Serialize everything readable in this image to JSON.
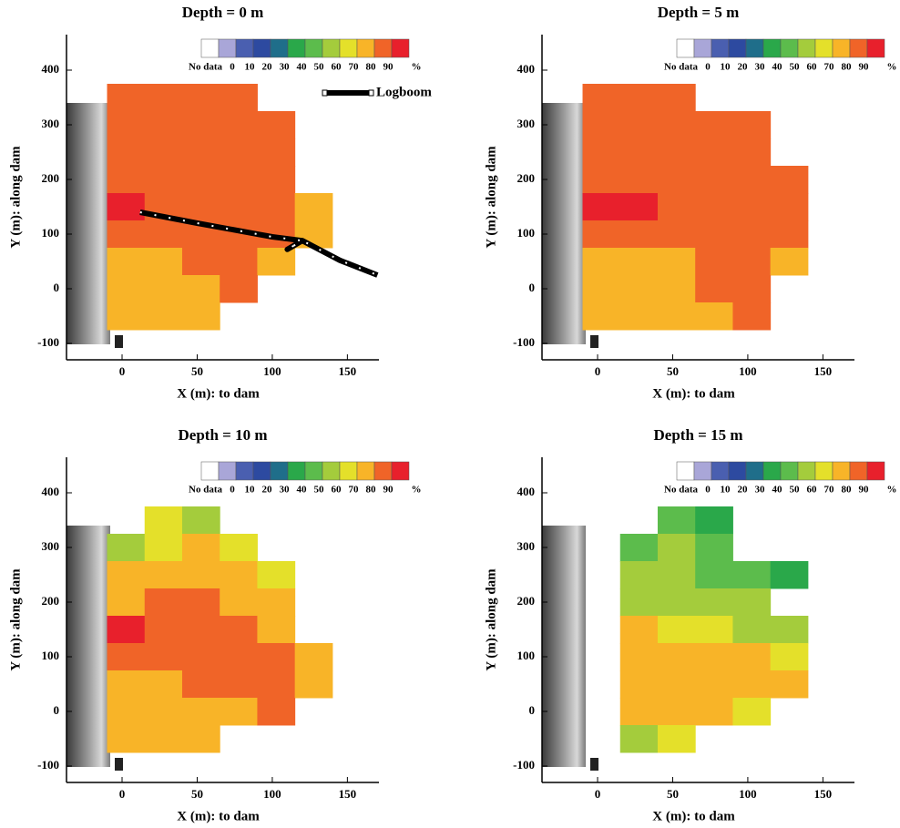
{
  "chart_data": [
    {
      "type": "heatmap",
      "title": "Depth = 0 m",
      "xlabel": "X (m): to dam",
      "ylabel": "Y (m): along dam",
      "xlim": [
        -37,
        171
      ],
      "ylim": [
        -130,
        465
      ],
      "xticks": [
        0,
        50,
        100,
        150
      ],
      "yticks": [
        -100,
        0,
        100,
        200,
        300,
        400
      ],
      "x": [
        2.5,
        27.5,
        52.5,
        77.5,
        102.5,
        127.5
      ],
      "y": [
        350,
        300,
        250,
        200,
        150,
        100,
        50,
        0,
        -50
      ],
      "values": [
        [
          80,
          85,
          80,
          80,
          null,
          null
        ],
        [
          85,
          85,
          85,
          85,
          80,
          null
        ],
        [
          80,
          85,
          85,
          85,
          80,
          null
        ],
        [
          85,
          80,
          85,
          85,
          80,
          null
        ],
        [
          90,
          85,
          85,
          85,
          85,
          70
        ],
        [
          80,
          80,
          80,
          85,
          85,
          70
        ],
        [
          75,
          75,
          80,
          80,
          75,
          null
        ],
        [
          75,
          75,
          75,
          80,
          null,
          null
        ],
        [
          75,
          75,
          75,
          null,
          null,
          null
        ]
      ],
      "colorbar": {
        "no_data_label": "No data",
        "levels": [
          0,
          10,
          20,
          30,
          40,
          50,
          60,
          70,
          80,
          90
        ],
        "unit": "%",
        "colors": [
          "#ffffff",
          "#a9a6d8",
          "#4a5fb0",
          "#2d4aa0",
          "#1f6e8a",
          "#2aa84a",
          "#5cbc4c",
          "#a4cc3c",
          "#e4e02a",
          "#f8b428",
          "#f06428",
          "#e8202c"
        ]
      },
      "logboom": {
        "label": "Logboom",
        "x": [
          12,
          50,
          100,
          120,
          110,
          120,
          145,
          170
        ],
        "y": [
          140,
          120,
          95,
          88,
          72,
          88,
          52,
          25
        ]
      }
    },
    {
      "type": "heatmap",
      "title": "Depth = 5 m",
      "xlabel": "X (m): to dam",
      "ylabel": "Y (m): along dam",
      "xlim": [
        -37,
        171
      ],
      "ylim": [
        -130,
        465
      ],
      "xticks": [
        0,
        50,
        100,
        150
      ],
      "yticks": [
        -100,
        0,
        100,
        200,
        300,
        400
      ],
      "x": [
        2.5,
        27.5,
        52.5,
        77.5,
        102.5,
        127.5
      ],
      "y": [
        350,
        300,
        250,
        200,
        150,
        100,
        50,
        0,
        -50
      ],
      "values": [
        [
          80,
          85,
          80,
          null,
          null,
          null
        ],
        [
          85,
          85,
          85,
          85,
          85,
          null
        ],
        [
          80,
          80,
          85,
          85,
          85,
          null
        ],
        [
          85,
          80,
          80,
          85,
          80,
          80
        ],
        [
          90,
          90,
          85,
          85,
          85,
          80
        ],
        [
          80,
          80,
          80,
          80,
          85,
          80
        ],
        [
          75,
          75,
          75,
          80,
          80,
          75
        ],
        [
          75,
          75,
          75,
          80,
          80,
          null
        ],
        [
          75,
          75,
          75,
          75,
          80,
          null
        ]
      ],
      "colorbar": {
        "no_data_label": "No data",
        "levels": [
          0,
          10,
          20,
          30,
          40,
          50,
          60,
          70,
          80,
          90
        ],
        "unit": "%",
        "colors": [
          "#ffffff",
          "#a9a6d8",
          "#4a5fb0",
          "#2d4aa0",
          "#1f6e8a",
          "#2aa84a",
          "#5cbc4c",
          "#a4cc3c",
          "#e4e02a",
          "#f8b428",
          "#f06428",
          "#e8202c"
        ]
      }
    },
    {
      "type": "heatmap",
      "title": "Depth = 10 m",
      "xlabel": "X (m): to dam",
      "ylabel": "Y (m): along dam",
      "xlim": [
        -37,
        171
      ],
      "ylim": [
        -130,
        465
      ],
      "xticks": [
        0,
        50,
        100,
        150
      ],
      "yticks": [
        -100,
        0,
        100,
        200,
        300,
        400
      ],
      "x": [
        2.5,
        27.5,
        52.5,
        77.5,
        102.5,
        127.5
      ],
      "y": [
        350,
        300,
        250,
        200,
        150,
        100,
        50,
        0,
        -50
      ],
      "values": [
        [
          null,
          60,
          50,
          null,
          null,
          null
        ],
        [
          55,
          60,
          70,
          60,
          null,
          null
        ],
        [
          70,
          75,
          70,
          75,
          60,
          null
        ],
        [
          75,
          80,
          80,
          75,
          70,
          null
        ],
        [
          90,
          85,
          80,
          80,
          70,
          null
        ],
        [
          80,
          80,
          80,
          80,
          80,
          70
        ],
        [
          75,
          75,
          80,
          80,
          80,
          70
        ],
        [
          75,
          75,
          75,
          75,
          80,
          null
        ],
        [
          75,
          75,
          75,
          null,
          null,
          null
        ]
      ],
      "colorbar": {
        "no_data_label": "No data",
        "levels": [
          0,
          10,
          20,
          30,
          40,
          50,
          60,
          70,
          80,
          90
        ],
        "unit": "%",
        "colors": [
          "#ffffff",
          "#a9a6d8",
          "#4a5fb0",
          "#2d4aa0",
          "#1f6e8a",
          "#2aa84a",
          "#5cbc4c",
          "#a4cc3c",
          "#e4e02a",
          "#f8b428",
          "#f06428",
          "#e8202c"
        ]
      }
    },
    {
      "type": "heatmap",
      "title": "Depth = 15 m",
      "xlabel": "X (m): to dam",
      "ylabel": "Y (m): along dam",
      "xlim": [
        -37,
        171
      ],
      "ylim": [
        -130,
        465
      ],
      "xticks": [
        0,
        50,
        100,
        150
      ],
      "yticks": [
        -100,
        0,
        100,
        200,
        300,
        400
      ],
      "x": [
        2.5,
        27.5,
        52.5,
        77.5,
        102.5,
        127.5
      ],
      "y": [
        350,
        300,
        250,
        200,
        150,
        100,
        50,
        0,
        -50
      ],
      "values": [
        [
          null,
          null,
          40,
          30,
          null,
          null
        ],
        [
          null,
          45,
          55,
          45,
          null,
          null
        ],
        [
          null,
          50,
          55,
          45,
          45,
          30
        ],
        [
          null,
          50,
          50,
          55,
          55,
          null
        ],
        [
          null,
          70,
          60,
          65,
          55,
          50
        ],
        [
          null,
          70,
          75,
          75,
          70,
          60
        ],
        [
          null,
          70,
          75,
          75,
          75,
          70
        ],
        [
          null,
          75,
          70,
          70,
          60,
          null
        ],
        [
          null,
          55,
          60,
          null,
          null,
          null
        ]
      ],
      "colorbar": {
        "no_data_label": "No data",
        "levels": [
          0,
          10,
          20,
          30,
          40,
          50,
          60,
          70,
          80,
          90
        ],
        "unit": "%",
        "colors": [
          "#ffffff",
          "#a9a6d8",
          "#4a5fb0",
          "#2d4aa0",
          "#1f6e8a",
          "#2aa84a",
          "#5cbc4c",
          "#a4cc3c",
          "#e4e02a",
          "#f8b428",
          "#f06428",
          "#e8202c"
        ]
      }
    }
  ]
}
